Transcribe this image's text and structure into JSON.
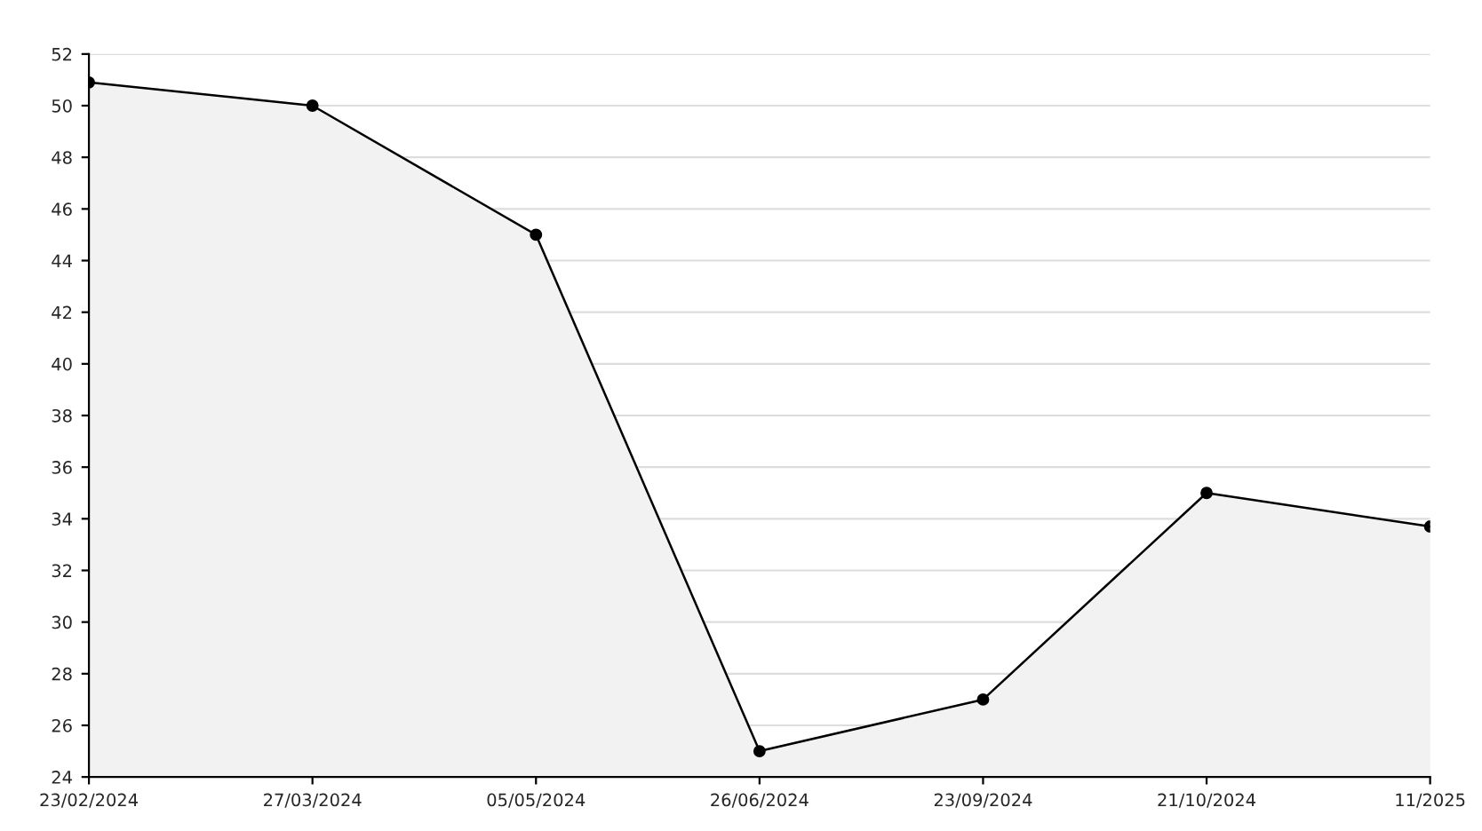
{
  "chart_data": {
    "type": "area",
    "categories": [
      "23/02/2024",
      "27/03/2024",
      "05/05/2024",
      "26/06/2024",
      "23/09/2024",
      "21/10/2024",
      "11/2025"
    ],
    "series": [
      {
        "color": "#000000",
        "values": [
          50.9,
          50,
          45,
          25,
          27,
          35,
          33.7
        ]
      }
    ],
    "ylim": [
      24,
      52
    ],
    "yticks": [
      24,
      26,
      28,
      30,
      32,
      34,
      36,
      38,
      40,
      42,
      44,
      46,
      48,
      50,
      52
    ],
    "grid": "y",
    "marker": "circle",
    "line_style": "solid"
  }
}
